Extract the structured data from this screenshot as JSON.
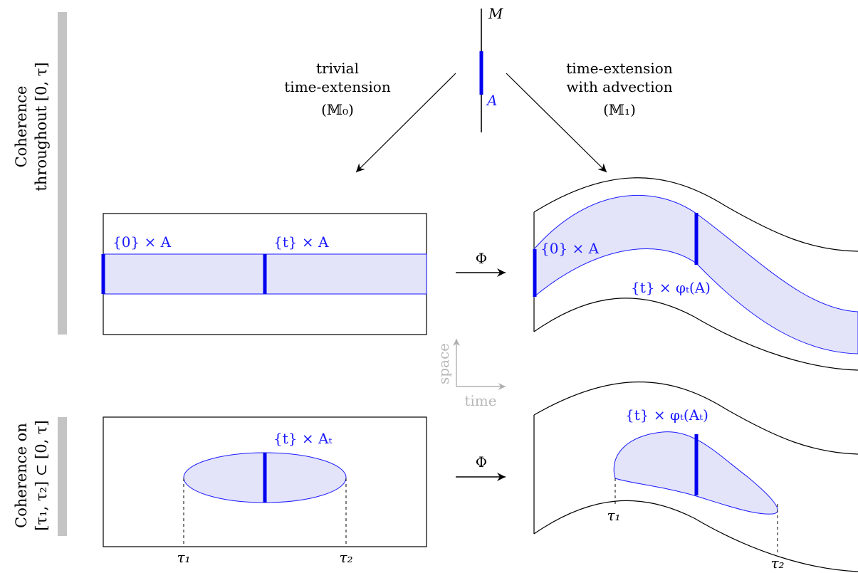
{
  "colors": {
    "region_fill": "#e3e3fa",
    "region_stroke": "#1a1aff",
    "slice": "#0000ee",
    "side_bar": "#c4c4c4",
    "axis_gray": "#b0b0b0"
  },
  "top": {
    "manifold_label": "M",
    "set_label": "A",
    "left_arrow_text": [
      "trivial",
      "time-extension",
      "(𝕄₀)"
    ],
    "right_arrow_text": [
      "time-extension",
      "with advection",
      "(𝕄₁)"
    ]
  },
  "sections": [
    {
      "side_label": [
        "Coherence",
        "throughout [0, τ]"
      ],
      "left_labels": {
        "start": "{0} × A",
        "slice": "{t} × A"
      },
      "map_label": "Φ",
      "right_labels": {
        "start": "{0} × A",
        "slice": "{t} × φₜ(A)"
      }
    },
    {
      "side_label": [
        "Coherence on",
        "[τ₁, τ₂] ⊂ [0, τ]"
      ],
      "left_labels": {
        "slice": "{t} × Aₜ",
        "tau1": "τ₁",
        "tau2": "τ₂"
      },
      "map_label": "Φ",
      "right_labels": {
        "slice": "{t} × φₜ(Aₜ)",
        "tau1": "τ₁",
        "tau2": "τ₂"
      }
    }
  ],
  "axes": {
    "space_label": "space",
    "time_label": "time"
  }
}
